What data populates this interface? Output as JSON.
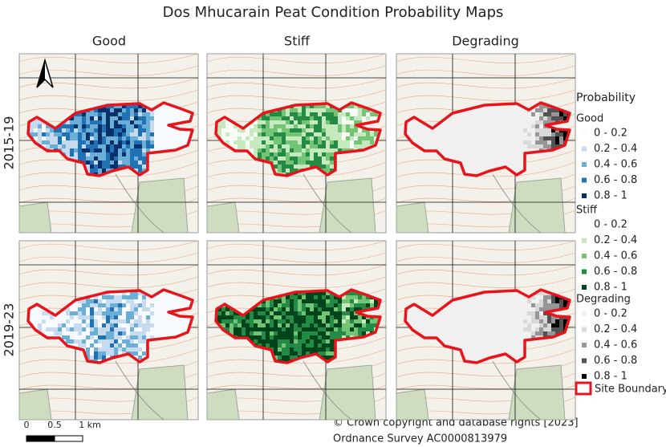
{
  "title": "Dos Mhucarain Peat Condition Probability Maps",
  "columns": [
    "Good",
    "Stiff",
    "Degrading"
  ],
  "rows": [
    "2015-19",
    "2019-23"
  ],
  "legend": {
    "title": "Probability",
    "groups": [
      {
        "name": "Good",
        "items": [
          "0 - 0.2",
          "0.2 - 0.4",
          "0.4 - 0.6",
          "0.6 - 0.8",
          "0.8 - 1"
        ],
        "colors": [
          "#f7fbff",
          "#c6dbef",
          "#6baed6",
          "#2171b5",
          "#08306b"
        ]
      },
      {
        "name": "Stiff",
        "items": [
          "0 - 0.2",
          "0.2 - 0.4",
          "0.4 - 0.6",
          "0.6 - 0.8",
          "0.8 - 1"
        ],
        "colors": [
          "#f7fcf5",
          "#c7e9c0",
          "#74c476",
          "#238b45",
          "#00441b"
        ]
      },
      {
        "name": "Degrading",
        "items": [
          "0 - 0.2",
          "0.2 - 0.4",
          "0.4 - 0.6",
          "0.6 - 0.8",
          "0.8 - 1"
        ],
        "colors": [
          "#f0f0f0",
          "#d9d9d9",
          "#969696",
          "#525252",
          "#000000"
        ]
      }
    ],
    "boundary": "Site Boundary",
    "boundary_color": "#e8141c"
  },
  "scale_bar": {
    "labels": [
      "0",
      "0.5",
      "1 km"
    ]
  },
  "attribution": [
    "© Crown copyright and database rights [2023]",
    "Ordnance Survey AC0000813979"
  ]
}
